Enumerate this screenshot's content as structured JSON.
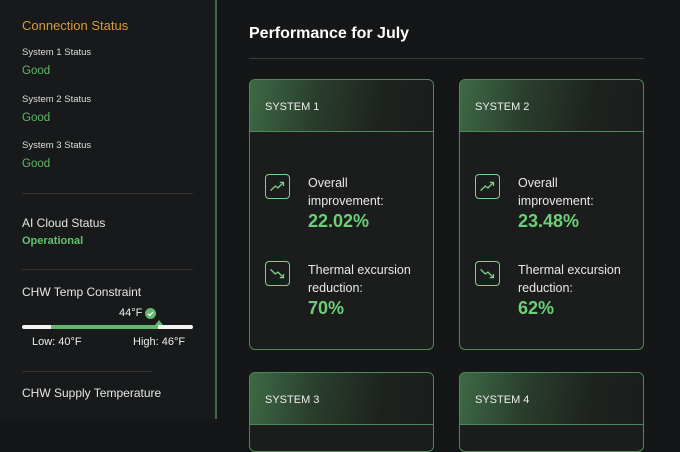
{
  "sidebar": {
    "connection_title": "Connection Status",
    "systems": [
      {
        "label": "System 1 Status",
        "status": "Good"
      },
      {
        "label": "System 2 Status",
        "status": "Good"
      },
      {
        "label": "System 3 Status",
        "status": "Good"
      }
    ],
    "ai_cloud": {
      "label": "AI Cloud Status",
      "status": "Operational"
    },
    "chw_constraint": {
      "label": "CHW Temp Constraint",
      "value": "44°F",
      "low": "Low: 40°F",
      "high": "High: 46°F"
    },
    "chw_supply": {
      "label": "CHW Supply Temperature"
    }
  },
  "main": {
    "title": "Performance for July",
    "cards": [
      {
        "name": "SYSTEM 1",
        "improvement_label": "Overall improvement:",
        "improvement": "22.02%",
        "thermal_label": "Thermal excursion reduction:",
        "thermal": "70%"
      },
      {
        "name": "SYSTEM 2",
        "improvement_label": "Overall improvement:",
        "improvement": "23.48%",
        "thermal_label": "Thermal excursion reduction:",
        "thermal": "62%"
      },
      {
        "name": "SYSTEM 3"
      },
      {
        "name": "SYSTEM 4"
      }
    ]
  },
  "colors": {
    "accent": "#5fb96a",
    "warning": "#d99a3a",
    "background": "#141618"
  }
}
